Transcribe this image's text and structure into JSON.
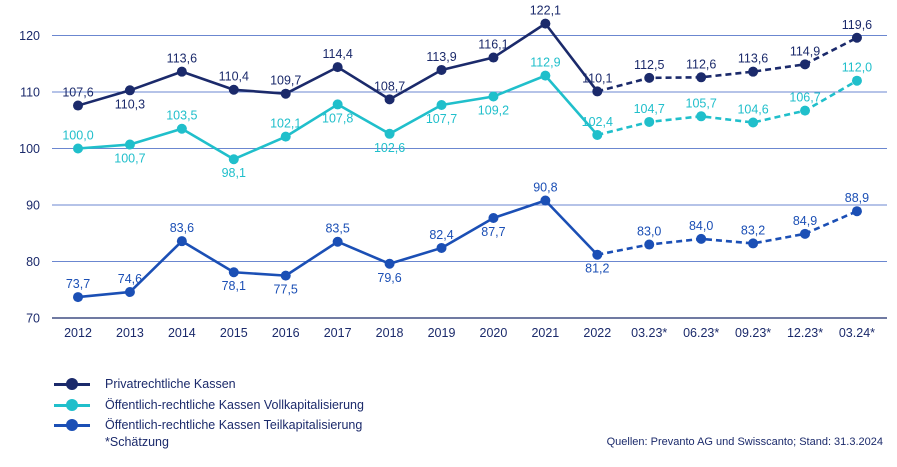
{
  "chart_data": {
    "type": "line",
    "title": "",
    "xlabel": "",
    "ylabel": "",
    "categories": [
      "2012",
      "2013",
      "2014",
      "2015",
      "2016",
      "2017",
      "2018",
      "2019",
      "2020",
      "2021",
      "2022",
      "03.23*",
      "06.23*",
      "09.23*",
      "12.23*",
      "03.24*"
    ],
    "ylim": [
      70,
      125
    ],
    "yticks": [
      70,
      80,
      90,
      100,
      110,
      120
    ],
    "grid": true,
    "legend_position": "bottom-left",
    "estimate_start_index": 10,
    "series": [
      {
        "name": "Privatrechtliche Kassen",
        "color": "#1b2a6b",
        "values": [
          107.6,
          110.3,
          113.6,
          110.4,
          109.7,
          114.4,
          108.7,
          113.9,
          116.1,
          122.1,
          110.1,
          112.5,
          112.6,
          113.6,
          114.9,
          119.6
        ],
        "labels": [
          "107,6",
          "110,3",
          "113,6",
          "110,4",
          "109,7",
          "114,4",
          "108,7",
          "113,9",
          "116,1",
          "122,1",
          "110,1",
          "112,5",
          "112,6",
          "113,6",
          "114,9",
          "119,6"
        ],
        "label_pos": [
          "above",
          "below",
          "above",
          "above",
          "above",
          "above",
          "above",
          "above",
          "above",
          "above",
          "above",
          "above",
          "above",
          "above",
          "above",
          "above"
        ]
      },
      {
        "name": "Öffentlich-rechtliche Kassen Vollkapitalisierung",
        "color": "#20bfcb",
        "values": [
          100.0,
          100.7,
          103.5,
          98.1,
          102.1,
          107.8,
          102.6,
          107.7,
          109.2,
          112.9,
          102.4,
          104.7,
          105.7,
          104.6,
          106.7,
          112.0
        ],
        "labels": [
          "100,0",
          "100,7",
          "103,5",
          "98,1",
          "102,1",
          "107,8",
          "102,6",
          "107,7",
          "109,2",
          "112,9",
          "102,4",
          "104,7",
          "105,7",
          "104,6",
          "106,7",
          "112,0"
        ],
        "label_pos": [
          "above",
          "below",
          "above",
          "below",
          "above",
          "below",
          "below",
          "below",
          "below",
          "above",
          "above",
          "above",
          "above",
          "above",
          "above",
          "above"
        ]
      },
      {
        "name": "Öffentlich-rechtliche Kassen Teilkapitalisierung",
        "color": "#1b4fb5",
        "values": [
          73.7,
          74.6,
          83.6,
          78.1,
          77.5,
          83.5,
          79.6,
          82.4,
          87.7,
          90.8,
          81.2,
          83.0,
          84.0,
          83.2,
          84.9,
          88.9
        ],
        "labels": [
          "73,7",
          "74,6",
          "83,6",
          "78,1",
          "77,5",
          "83,5",
          "79,6",
          "82,4",
          "87,7",
          "90,8",
          "81,2",
          "83,0",
          "84,0",
          "83,2",
          "84,9",
          "88,9"
        ],
        "label_pos": [
          "above",
          "above",
          "above",
          "below",
          "below",
          "above",
          "below",
          "above",
          "below",
          "above",
          "below",
          "above",
          "above",
          "above",
          "above",
          "above"
        ]
      }
    ],
    "y_tick_labels": [
      "70",
      "80",
      "90",
      "100",
      "110",
      "120"
    ]
  },
  "footnote": "*Schätzung",
  "source": "Quellen: Prevanto AG und Swisscanto; Stand: 31.3.2024"
}
